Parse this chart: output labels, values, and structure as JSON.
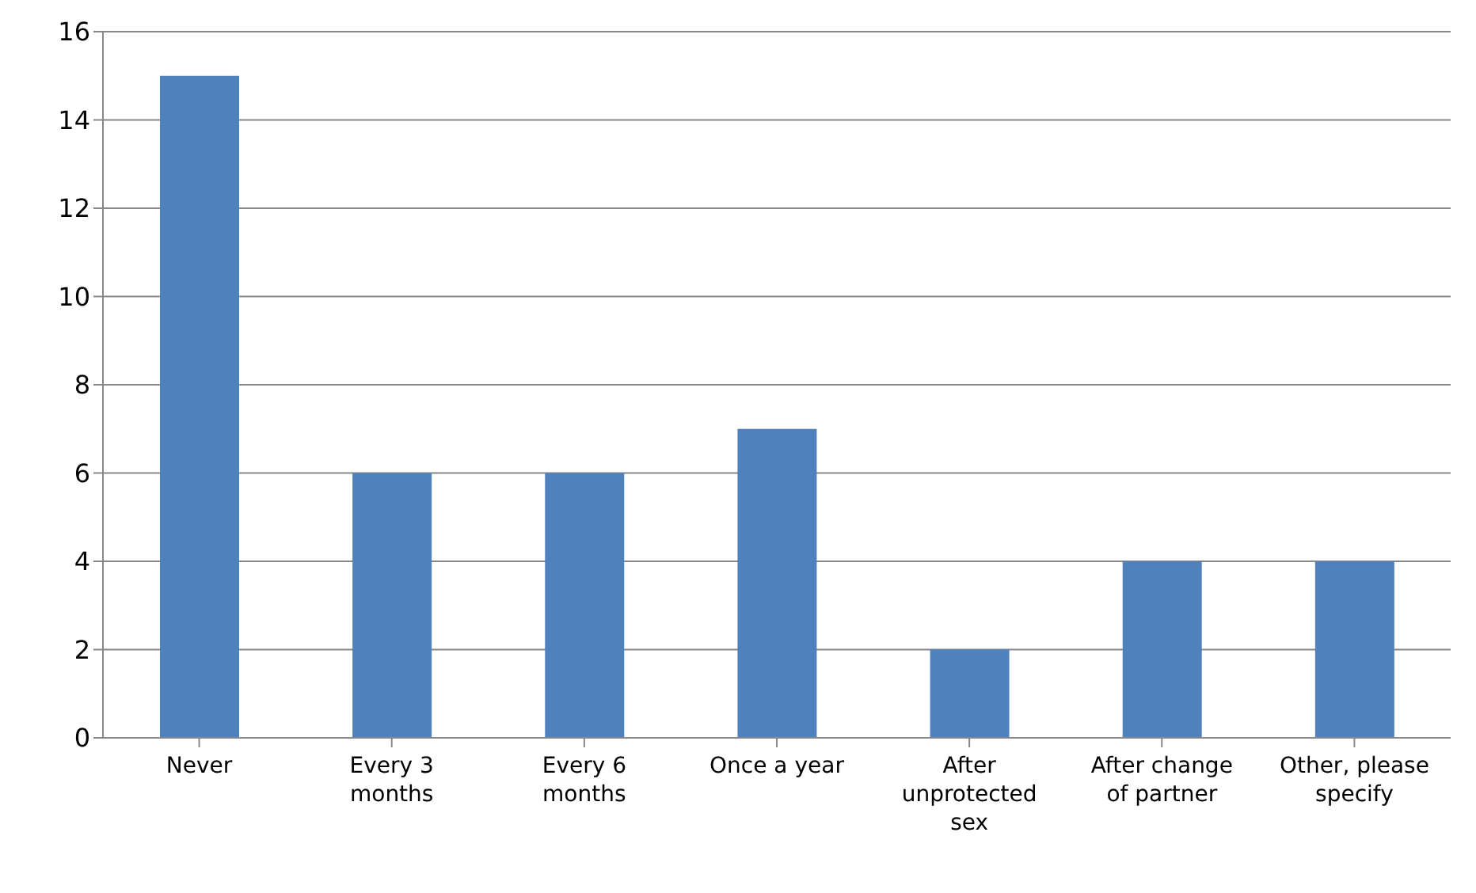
{
  "chart_data": {
    "type": "bar",
    "categories": [
      "Never",
      "Every 3 months",
      "Every 6 months",
      "Once a year",
      "After unprotected sex",
      "After change of partner",
      "Other, please specify"
    ],
    "values": [
      15,
      6,
      6,
      7,
      2,
      4,
      4
    ],
    "color": "#4f81bd",
    "ylim": [
      0,
      16
    ],
    "yticks": [
      0,
      2,
      4,
      6,
      8,
      10,
      12,
      14,
      16
    ],
    "grid": "y",
    "legend": false
  }
}
